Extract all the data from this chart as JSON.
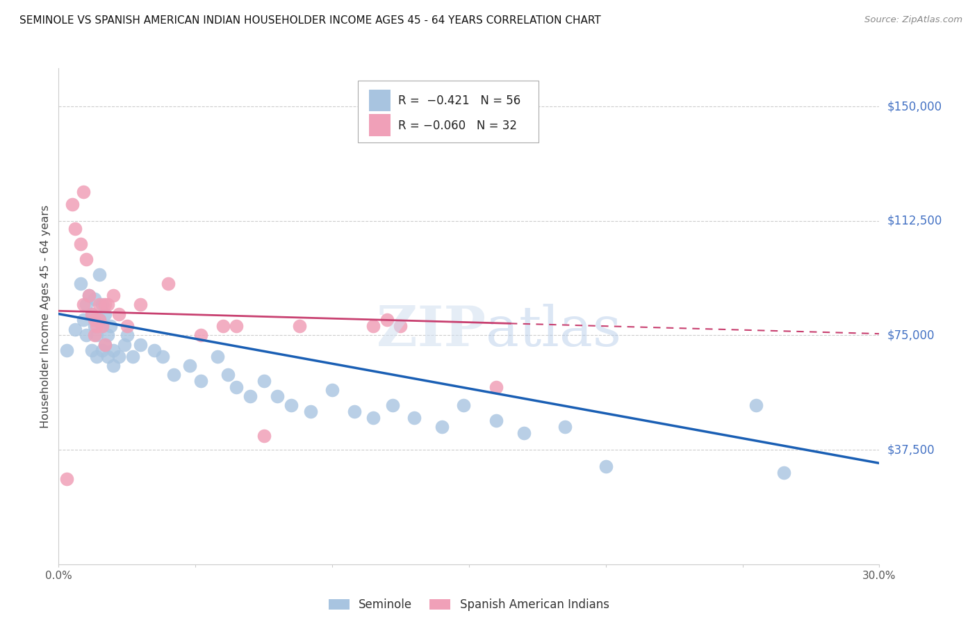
{
  "title": "SEMINOLE VS SPANISH AMERICAN INDIAN HOUSEHOLDER INCOME AGES 45 - 64 YEARS CORRELATION CHART",
  "source": "Source: ZipAtlas.com",
  "ylabel": "Householder Income Ages 45 - 64 years",
  "xlim": [
    0.0,
    0.3
  ],
  "ylim": [
    0,
    162500
  ],
  "ytick_vals": [
    37500,
    75000,
    112500,
    150000
  ],
  "ytick_labels": [
    "$37,500",
    "$75,000",
    "$112,500",
    "$150,000"
  ],
  "xticks": [
    0.0,
    0.05,
    0.1,
    0.15,
    0.2,
    0.25,
    0.3
  ],
  "xtick_labels": [
    "0.0%",
    "",
    "",
    "",
    "",
    "",
    "30.0%"
  ],
  "blue_R": -0.421,
  "blue_N": 56,
  "pink_R": -0.06,
  "pink_N": 32,
  "blue_color": "#a8c4e0",
  "pink_color": "#f0a0b8",
  "line_blue": "#1a5fb4",
  "line_pink": "#c84070",
  "axis_label_color": "#4472c4",
  "blue_line_intercept": 82000,
  "blue_line_slope": -163000,
  "pink_line_intercept": 83000,
  "pink_line_slope": -25000,
  "seminole_x": [
    0.003,
    0.006,
    0.008,
    0.009,
    0.01,
    0.01,
    0.011,
    0.012,
    0.012,
    0.013,
    0.013,
    0.014,
    0.014,
    0.015,
    0.015,
    0.016,
    0.016,
    0.016,
    0.017,
    0.017,
    0.018,
    0.018,
    0.019,
    0.02,
    0.02,
    0.022,
    0.024,
    0.025,
    0.027,
    0.03,
    0.035,
    0.038,
    0.042,
    0.048,
    0.052,
    0.058,
    0.062,
    0.065,
    0.07,
    0.075,
    0.08,
    0.085,
    0.092,
    0.1,
    0.108,
    0.115,
    0.122,
    0.13,
    0.14,
    0.148,
    0.16,
    0.17,
    0.185,
    0.2,
    0.255,
    0.265
  ],
  "seminole_y": [
    70000,
    77000,
    92000,
    80000,
    85000,
    75000,
    88000,
    82000,
    70000,
    87000,
    78000,
    75000,
    68000,
    95000,
    80000,
    85000,
    78000,
    70000,
    72000,
    82000,
    75000,
    68000,
    78000,
    70000,
    65000,
    68000,
    72000,
    75000,
    68000,
    72000,
    70000,
    68000,
    62000,
    65000,
    60000,
    68000,
    62000,
    58000,
    55000,
    60000,
    55000,
    52000,
    50000,
    57000,
    50000,
    48000,
    52000,
    48000,
    45000,
    52000,
    47000,
    43000,
    45000,
    32000,
    52000,
    30000
  ],
  "spanish_x": [
    0.003,
    0.005,
    0.006,
    0.008,
    0.009,
    0.009,
    0.01,
    0.011,
    0.012,
    0.013,
    0.013,
    0.014,
    0.015,
    0.015,
    0.016,
    0.017,
    0.017,
    0.018,
    0.02,
    0.022,
    0.025,
    0.03,
    0.04,
    0.052,
    0.06,
    0.065,
    0.075,
    0.088,
    0.115,
    0.12,
    0.125,
    0.16
  ],
  "spanish_y": [
    28000,
    118000,
    110000,
    105000,
    122000,
    85000,
    100000,
    88000,
    82000,
    80000,
    75000,
    78000,
    85000,
    80000,
    78000,
    85000,
    72000,
    85000,
    88000,
    82000,
    78000,
    85000,
    92000,
    75000,
    78000,
    78000,
    42000,
    78000,
    78000,
    80000,
    78000,
    58000
  ]
}
